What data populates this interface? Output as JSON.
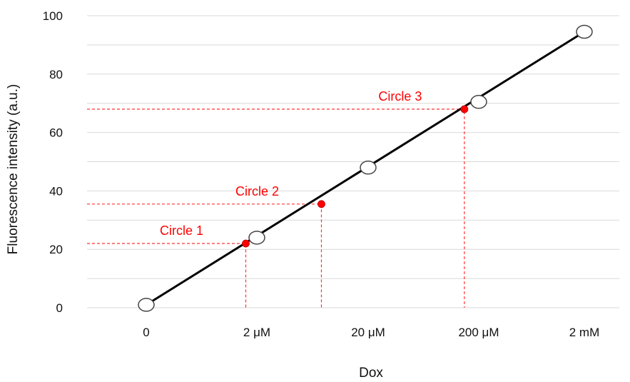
{
  "chart_data": {
    "type": "line",
    "xlabel": "Dox",
    "ylabel": "Fluorescence intensity (a.u.)",
    "ylim": [
      0,
      100
    ],
    "yticks": [
      "0",
      "20",
      "40",
      "60",
      "80",
      "100"
    ],
    "xticks": [
      "0",
      "2 μM",
      "20 μM",
      "200 μM",
      "2 mM"
    ],
    "grid": true,
    "series": [
      {
        "points": [
          {
            "x": "0",
            "y": 1
          },
          {
            "x": "2 μM",
            "y": 24
          },
          {
            "x": "20 μM",
            "y": 48
          },
          {
            "x": "200 μM",
            "y": 70.5
          },
          {
            "x": "2 mM",
            "y": 94.5
          }
        ]
      }
    ],
    "annotations": [
      {
        "label": "Circle 1",
        "y": 22,
        "x_between": [
          "0",
          "2 μM"
        ],
        "x_fraction": 0.9
      },
      {
        "label": "Circle 2",
        "y": 35.5,
        "x_between": [
          "2 μM",
          "20 μM"
        ],
        "x_fraction": 0.58
      },
      {
        "label": "Circle 3",
        "y": 68,
        "x_between": [
          "20 μM",
          "200 μM"
        ],
        "x_fraction": 0.87
      }
    ],
    "colors": {
      "line": "#000000",
      "marker": "#ffffff",
      "annotation": "#ff0000",
      "grid": "#d9d9d9"
    }
  }
}
